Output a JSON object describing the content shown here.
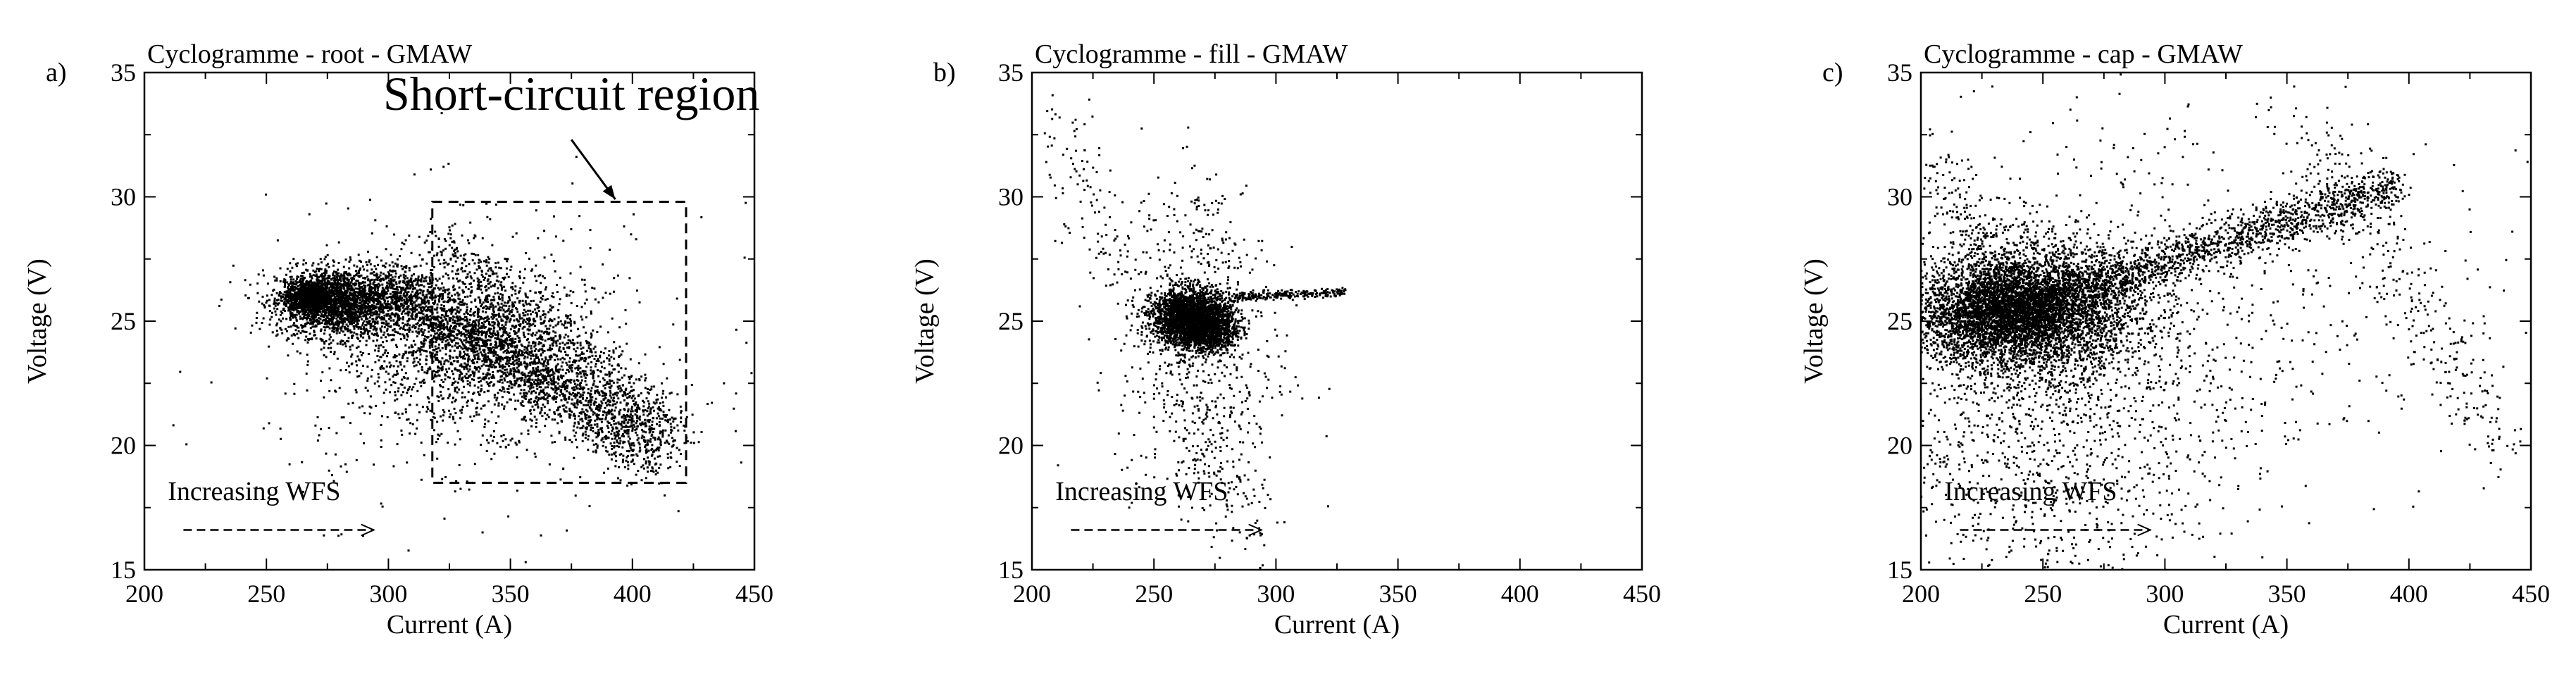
{
  "chart_data": [
    {
      "type": "scatter",
      "panel_label": "a)",
      "title": "Cyclogramme - root - GMAW",
      "xlabel": "Current (A)",
      "ylabel": "Voltage (V)",
      "xlim": [
        200,
        450
      ],
      "ylim": [
        15,
        35
      ],
      "xticks": [
        200,
        250,
        300,
        350,
        400,
        450
      ],
      "yticks": [
        15,
        20,
        25,
        30,
        35
      ],
      "grid": false,
      "clusters": [
        {
          "center": [
            280,
            25.8
          ],
          "spread": [
            13,
            0.7
          ],
          "count": 2200,
          "shape": "blob"
        },
        {
          "center": [
            267,
            26.0
          ],
          "spread": [
            5,
            0.3
          ],
          "count": 900,
          "shape": "blob"
        },
        {
          "center": [
            330,
            24.0
          ],
          "spread": [
            25,
            1.6
          ],
          "count": 1400,
          "shape": "blob"
        },
        {
          "from": [
            300,
            26.5
          ],
          "to": [
            410,
            19.8
          ],
          "width": 1.2,
          "count": 2000,
          "shape": "band"
        },
        {
          "from": [
            320,
            28.0
          ],
          "to": [
            420,
            20.5
          ],
          "width": 1.0,
          "count": 700,
          "shape": "band"
        },
        {
          "center": [
            340,
            23.5
          ],
          "spread": [
            45,
            3.0
          ],
          "count": 500,
          "shape": "blob"
        }
      ],
      "annotations": [
        {
          "text": "Short-circuit region",
          "at": [
            375,
            33.5
          ]
        },
        {
          "text": "Increasing WFS",
          "at": [
            245,
            17.8
          ]
        }
      ],
      "box": {
        "x": [
          318,
          422
        ],
        "y": [
          18.5,
          29.8
        ]
      },
      "callout_arrow": {
        "from": [
          375,
          32.3
        ],
        "to": [
          393,
          29.9
        ]
      },
      "wfs_arrow": {
        "from": [
          216,
          16.6
        ],
        "to": [
          294,
          16.6
        ]
      }
    },
    {
      "type": "scatter",
      "panel_label": "b)",
      "title": "Cyclogramme - fill - GMAW",
      "xlabel": "Current (A)",
      "ylabel": "Voltage (V)",
      "xlim": [
        200,
        450
      ],
      "ylim": [
        15,
        35
      ],
      "xticks": [
        200,
        250,
        300,
        350,
        400,
        450
      ],
      "yticks": [
        15,
        20,
        25,
        30,
        35
      ],
      "grid": false,
      "clusters": [
        {
          "center": [
            265,
            25.2
          ],
          "spread": [
            8,
            0.55
          ],
          "count": 2600,
          "shape": "blob"
        },
        {
          "center": [
            272,
            24.6
          ],
          "spread": [
            6,
            0.4
          ],
          "count": 700,
          "shape": "blob"
        },
        {
          "from": [
            280,
            26.0
          ],
          "to": [
            328,
            26.2
          ],
          "width": 0.15,
          "count": 220,
          "shape": "band"
        },
        {
          "center": [
            270,
            23.0
          ],
          "spread": [
            18,
            2.5
          ],
          "count": 350,
          "shape": "blob"
        },
        {
          "from": [
            205,
            33.0
          ],
          "to": [
            262,
            24.0
          ],
          "width": 2.0,
          "count": 200,
          "shape": "band"
        },
        {
          "from": [
            258,
            23.0
          ],
          "to": [
            292,
            16.0
          ],
          "width": 2.0,
          "count": 200,
          "shape": "band"
        },
        {
          "from": [
            258,
            30.0
          ],
          "to": [
            285,
            27.0
          ],
          "width": 2.0,
          "count": 120,
          "shape": "band"
        }
      ],
      "annotations": [
        {
          "text": "Increasing WFS",
          "at": [
            245,
            17.8
          ]
        }
      ],
      "wfs_arrow": {
        "from": [
          216,
          16.6
        ],
        "to": [
          294,
          16.6
        ]
      }
    },
    {
      "type": "scatter",
      "panel_label": "c)",
      "title": "Cyclogramme - cap - GMAW",
      "xlabel": "Current (A)",
      "ylabel": "Voltage (V)",
      "xlim": [
        200,
        450
      ],
      "ylim": [
        15,
        35
      ],
      "xticks": [
        200,
        250,
        300,
        350,
        400,
        450
      ],
      "yticks": [
        15,
        20,
        25,
        30,
        35
      ],
      "grid": false,
      "clusters": [
        {
          "center": [
            245,
            25.5
          ],
          "spread": [
            22,
            1.3
          ],
          "count": 4200,
          "shape": "blob"
        },
        {
          "center": [
            230,
            25.3
          ],
          "spread": [
            15,
            0.8
          ],
          "count": 1600,
          "shape": "blob"
        },
        {
          "from": [
            240,
            25.5
          ],
          "to": [
            395,
            30.5
          ],
          "width": 0.8,
          "count": 1700,
          "shape": "band"
        },
        {
          "center": [
            250,
            21.0
          ],
          "spread": [
            40,
            3.5
          ],
          "count": 1300,
          "shape": "blob"
        },
        {
          "center": [
            300,
            26.0
          ],
          "spread": [
            75,
            4.5
          ],
          "count": 700,
          "shape": "blob"
        },
        {
          "from": [
            360,
            32.2
          ],
          "to": [
            440,
            20.0
          ],
          "width": 1.5,
          "count": 260,
          "shape": "band"
        },
        {
          "from": [
            205,
            31.0
          ],
          "to": [
            240,
            26.0
          ],
          "width": 1.5,
          "count": 200,
          "shape": "band"
        }
      ],
      "annotations": [
        {
          "text": "Increasing WFS",
          "at": [
            245,
            17.8
          ]
        }
      ],
      "wfs_arrow": {
        "from": [
          216,
          16.6
        ],
        "to": [
          294,
          16.6
        ]
      }
    }
  ]
}
